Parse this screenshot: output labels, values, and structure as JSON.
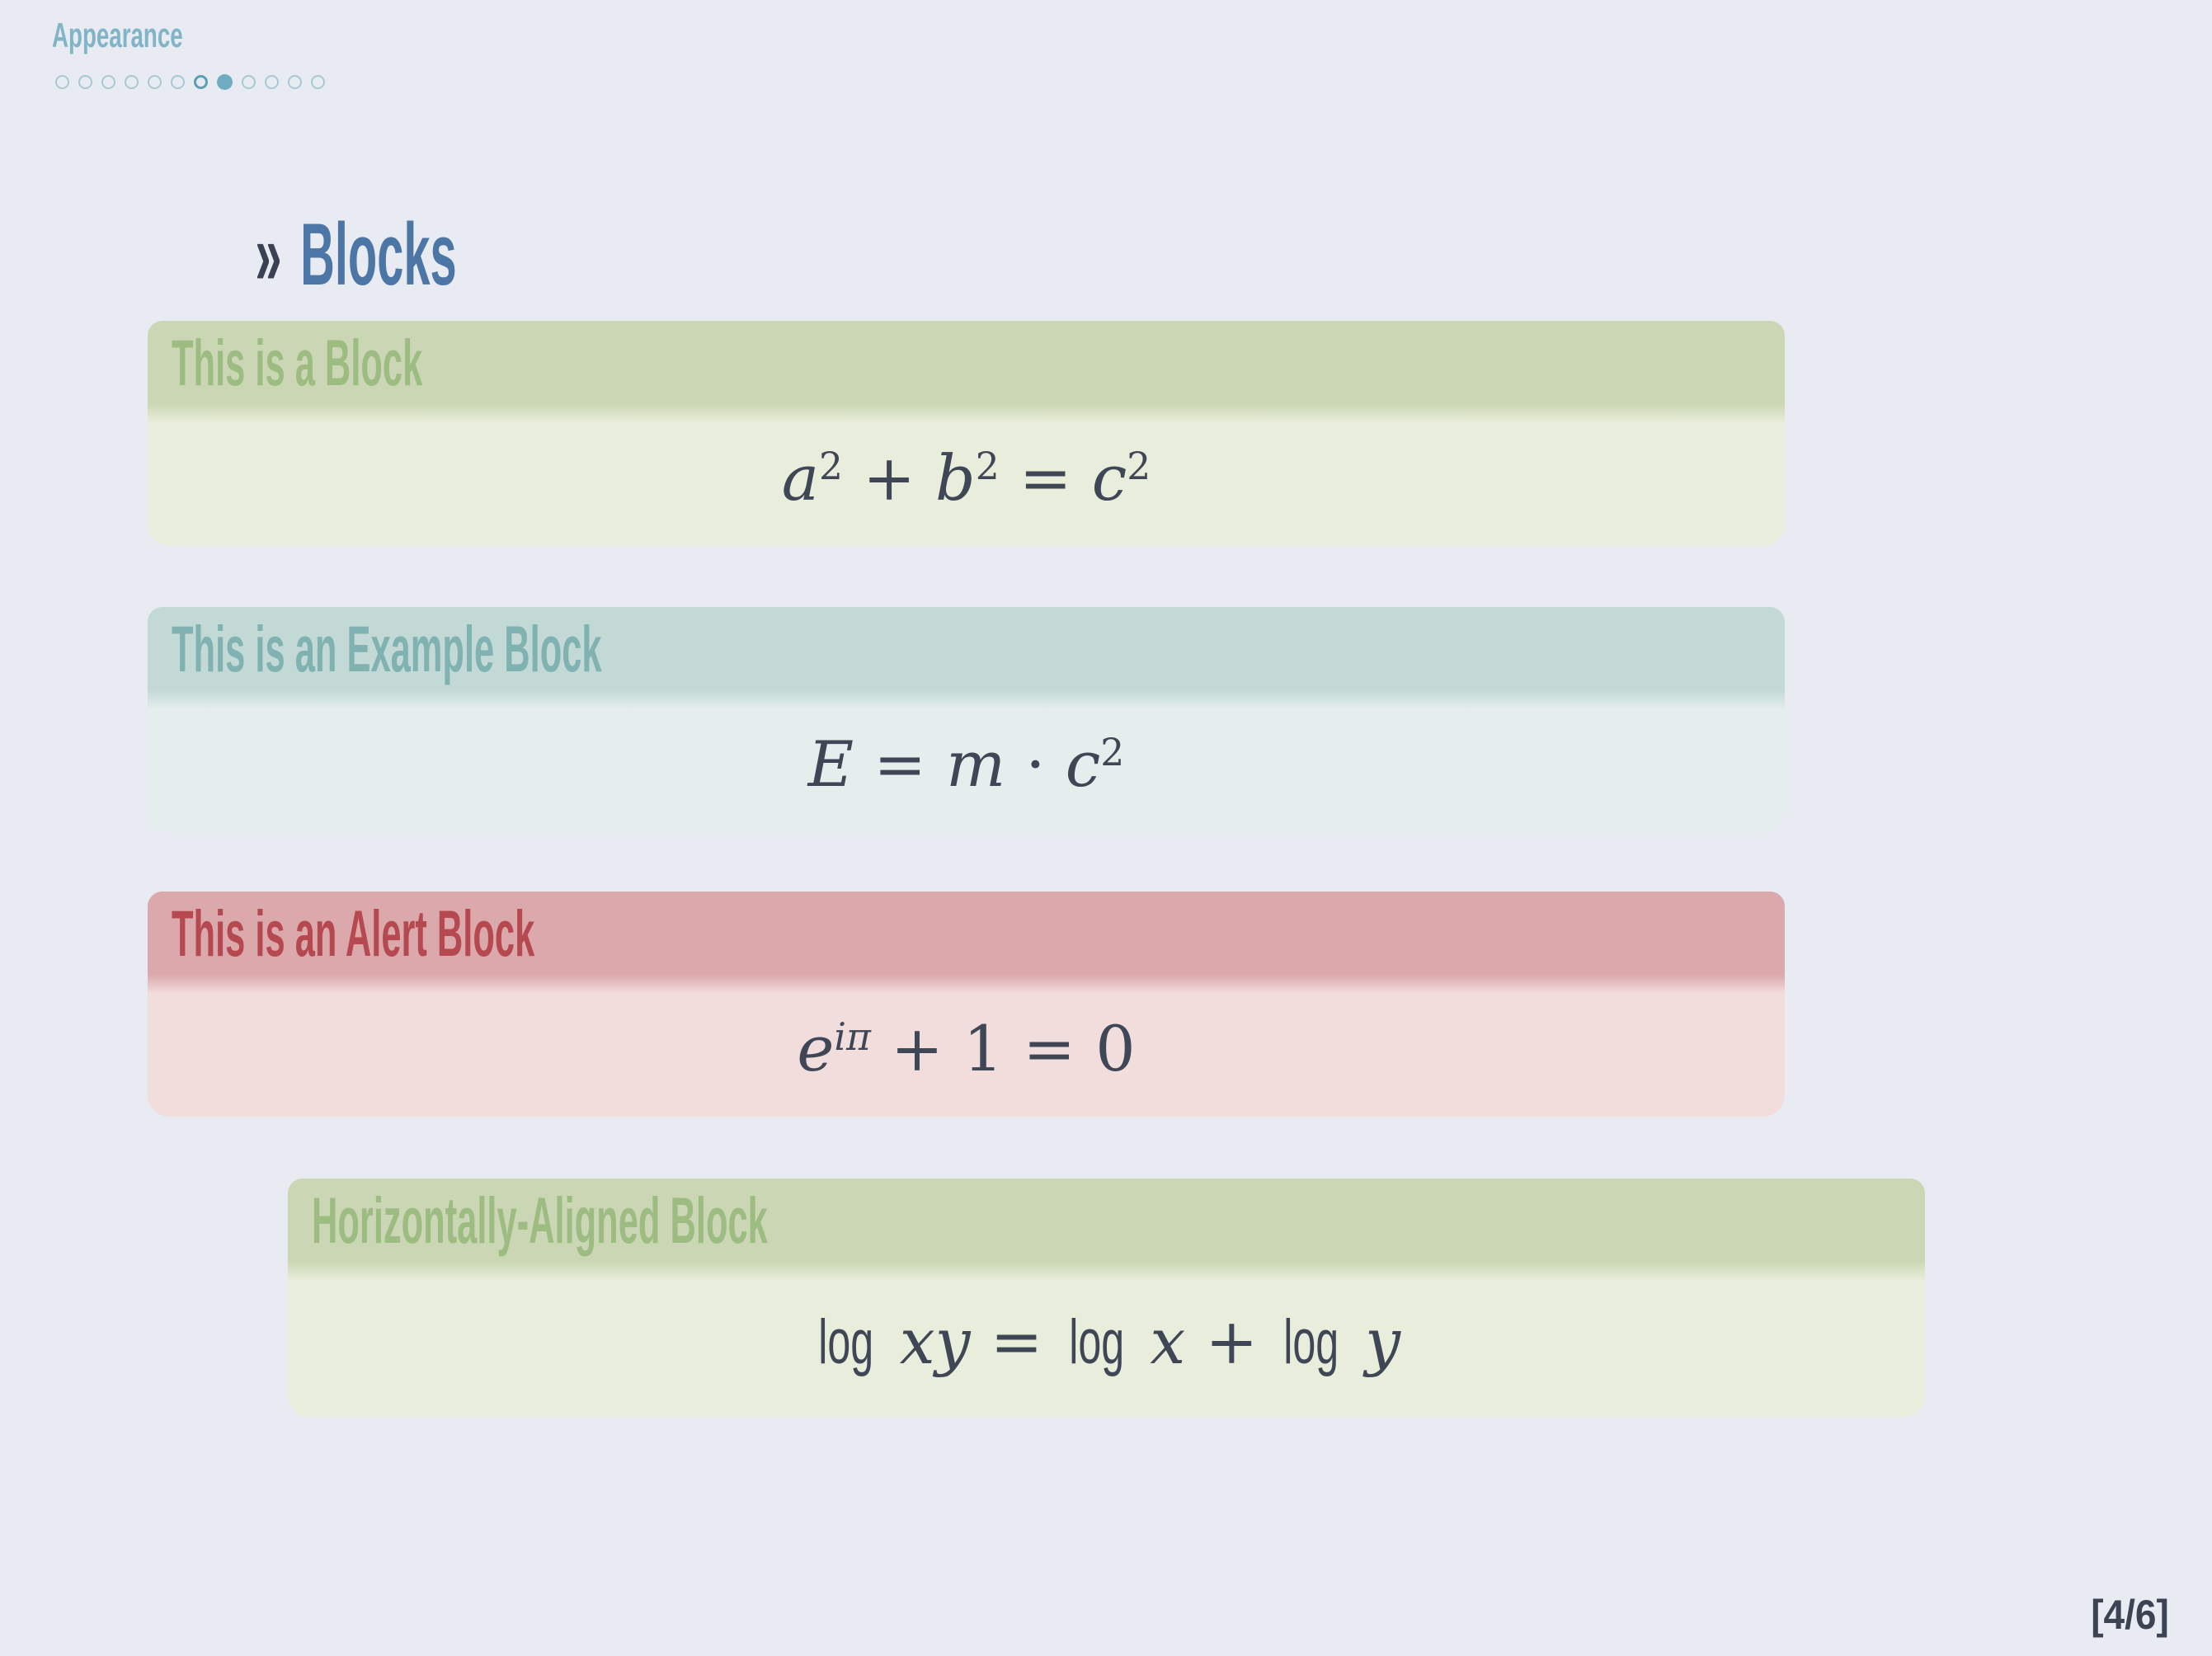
{
  "header": {
    "section_label": "Appearance",
    "dots": [
      "empty",
      "empty",
      "empty",
      "empty",
      "empty",
      "empty",
      "outlined",
      "filled",
      "empty",
      "empty",
      "empty",
      "empty"
    ]
  },
  "slide": {
    "title_marker": "»",
    "title": "Blocks"
  },
  "blocks": [
    {
      "type": "standard",
      "title": "This is a Block",
      "align": "left",
      "equation_plain": "a² + b² = c²",
      "equation_segments": [
        {
          "t": "a",
          "s": "vi"
        },
        {
          "t": "2",
          "s": "sup"
        },
        {
          "t": " + ",
          "s": "rm"
        },
        {
          "t": "b",
          "s": "vi"
        },
        {
          "t": "2",
          "s": "sup"
        },
        {
          "t": " = ",
          "s": "rm"
        },
        {
          "t": "c",
          "s": "vi"
        },
        {
          "t": "2",
          "s": "sup"
        }
      ],
      "palette": {
        "header_bg": "#cbd7b4",
        "title_color": "#9cbc82",
        "body_bg": "#e8eedb"
      }
    },
    {
      "type": "example",
      "title": "This is an Example Block",
      "align": "left",
      "equation_plain": "E = m · c²",
      "equation_segments": [
        {
          "t": "E",
          "s": "vi"
        },
        {
          "t": " = ",
          "s": "rm"
        },
        {
          "t": "m",
          "s": "vi"
        },
        {
          "t": " · ",
          "s": "rm"
        },
        {
          "t": "c",
          "s": "vi"
        },
        {
          "t": "2",
          "s": "sup"
        }
      ],
      "palette": {
        "header_bg": "#c2d9d6",
        "title_color": "#80b2b1",
        "body_bg": "#e4eeec"
      }
    },
    {
      "type": "alert",
      "title": "This is an Alert Block",
      "align": "left",
      "equation_plain": "e^(iπ) + 1 = 0",
      "equation_segments": [
        {
          "t": "e",
          "s": "vi"
        },
        {
          "t": "iπ",
          "s": "supvi"
        },
        {
          "t": " + 1 = 0",
          "s": "rm"
        }
      ],
      "palette": {
        "header_bg": "#dba8ab",
        "title_color": "#b5494f",
        "body_bg": "#f2dddd"
      }
    },
    {
      "type": "standard",
      "title": "Horizontally-Aligned Block",
      "align": "center",
      "equation_plain": "log xy = log x + log y",
      "equation_segments": [
        {
          "t": "log",
          "s": "fn"
        },
        {
          "t": " ",
          "s": "rm"
        },
        {
          "t": "xy",
          "s": "vi"
        },
        {
          "t": " = ",
          "s": "rm"
        },
        {
          "t": "log",
          "s": "fn"
        },
        {
          "t": " ",
          "s": "rm"
        },
        {
          "t": "x",
          "s": "vi"
        },
        {
          "t": " + ",
          "s": "rm"
        },
        {
          "t": "log",
          "s": "fn"
        },
        {
          "t": " ",
          "s": "rm"
        },
        {
          "t": "y",
          "s": "vi"
        }
      ],
      "palette": {
        "header_bg": "#cbd7b4",
        "title_color": "#9cbc82",
        "body_bg": "#e8eedb"
      }
    }
  ],
  "footer": {
    "page_indicator": "[4/6]"
  },
  "colors": {
    "background": "#e8ebf2",
    "section_text": "#82b4c8",
    "dot_empty_stroke": "#a9c8d2",
    "dot_outlined_stroke": "#5e9eb3",
    "dot_filled_fill": "#6fabc1",
    "title_marker": "#3a4152",
    "title_text": "#4b76a5",
    "math_ink": "#3f4656",
    "page_indicator": "#3c4353"
  }
}
